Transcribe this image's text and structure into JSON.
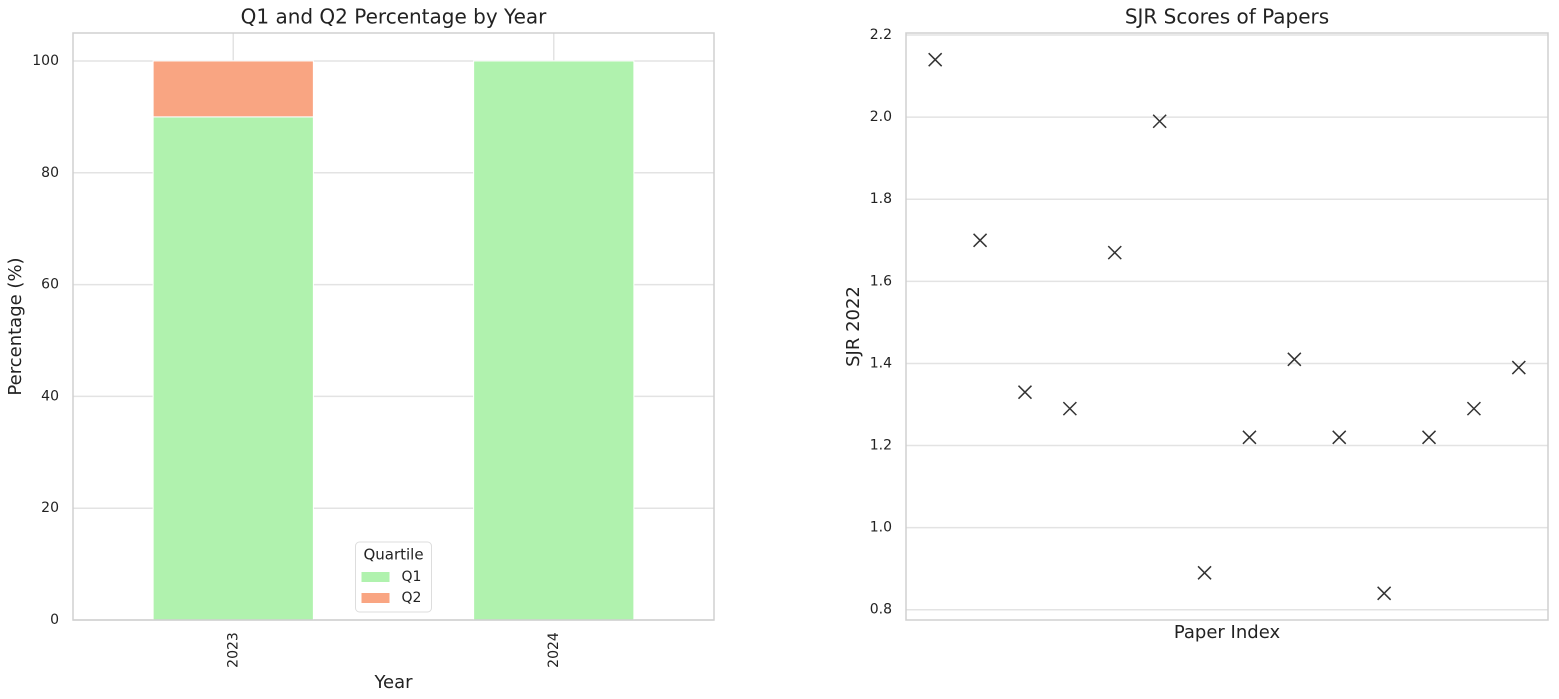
{
  "chart_data": [
    {
      "type": "bar",
      "stacked": true,
      "title": "Q1 and Q2 Percentage by Year",
      "xlabel": "Year",
      "ylabel": "Percentage (%)",
      "categories": [
        "2023",
        "2024"
      ],
      "series": [
        {
          "name": "Q1",
          "color": "#b0f2ae",
          "values": [
            90,
            100
          ]
        },
        {
          "name": "Q2",
          "color": "#f9a582",
          "values": [
            10,
            0
          ]
        }
      ],
      "ylim": [
        0,
        105
      ],
      "yticks": [
        0,
        20,
        40,
        60,
        80,
        100
      ],
      "grid": true,
      "legend": {
        "title": "Quartile",
        "loc": "lower center"
      }
    },
    {
      "type": "scatter",
      "title": "SJR Scores of Papers",
      "xlabel": "Paper Index",
      "ylabel": "SJR 2022",
      "x": [
        0,
        1,
        2,
        3,
        4,
        5,
        6,
        7,
        8,
        9,
        10,
        11,
        12,
        13
      ],
      "values": [
        2.14,
        1.7,
        1.33,
        1.29,
        1.67,
        1.99,
        0.89,
        1.22,
        1.41,
        1.22,
        0.84,
        1.22,
        1.29,
        1.39
      ],
      "marker": "x",
      "color": "#333333",
      "xlim": [
        -0.65,
        13.65
      ],
      "ylim": [
        0.775,
        2.205
      ],
      "yticks": [
        {
          "value": 0.8,
          "label": "0.8"
        },
        {
          "value": 1.0,
          "label": "1.0"
        },
        {
          "value": 1.2,
          "label": "1.2"
        },
        {
          "value": 1.4,
          "label": "1.4"
        },
        {
          "value": 1.6,
          "label": "1.6"
        },
        {
          "value": 1.8,
          "label": "1.8"
        },
        {
          "value": 2.0,
          "label": "2.0"
        },
        {
          "value": 2.2,
          "label": "2.2"
        }
      ],
      "grid": true
    }
  ]
}
